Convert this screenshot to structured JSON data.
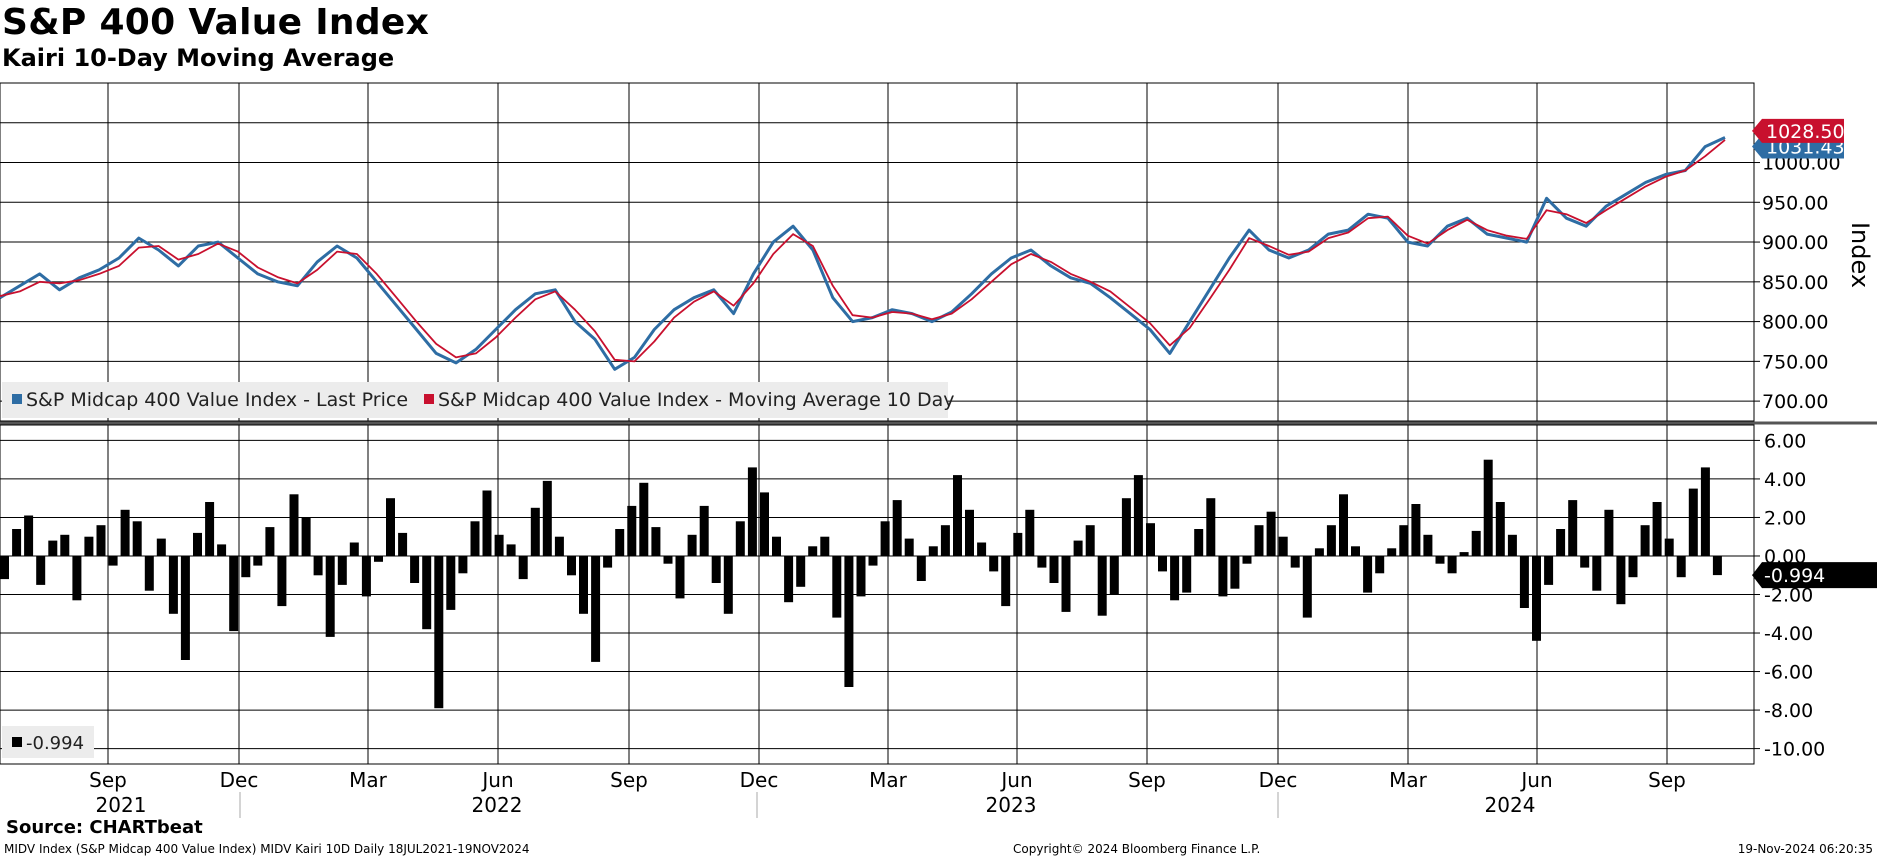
{
  "header": {
    "title": "S&P 400 Value Index",
    "subtitle": "Kairi 10-Day Moving Average"
  },
  "footer": {
    "source": "Source: CHARTbeat",
    "description": "MIDV Index (S&P Midcap 400 Value Index) MIDV Kairi 10D  Daily 18JUL2021-19NOV2024",
    "copyright": "Copyright© 2024 Bloomberg Finance L.P.",
    "timestamp": "19-Nov-2024 06:20:35"
  },
  "chart_data": [
    {
      "type": "line",
      "panel": "price",
      "ylabel": "Index",
      "ylim": [
        675,
        1100
      ],
      "yticks": [
        "700.00",
        "750.00",
        "800.00",
        "850.00",
        "900.00",
        "950.00",
        "1000.00"
      ],
      "grid": true,
      "legend_position": "bottom-left",
      "x": [
        "2021-07-19",
        "2021-08-02",
        "2021-08-16",
        "2021-08-30",
        "2021-09-13",
        "2021-09-27",
        "2021-10-11",
        "2021-10-25",
        "2021-11-08",
        "2021-11-22",
        "2021-12-06",
        "2021-12-20",
        "2022-01-03",
        "2022-01-17",
        "2022-01-31",
        "2022-02-14",
        "2022-02-28",
        "2022-03-14",
        "2022-03-28",
        "2022-04-11",
        "2022-04-25",
        "2022-05-09",
        "2022-05-23",
        "2022-06-06",
        "2022-06-20",
        "2022-07-04",
        "2022-07-18",
        "2022-08-01",
        "2022-08-15",
        "2022-08-29",
        "2022-09-12",
        "2022-09-26",
        "2022-10-10",
        "2022-10-24",
        "2022-11-07",
        "2022-11-21",
        "2022-12-05",
        "2022-12-19",
        "2023-01-02",
        "2023-01-16",
        "2023-01-30",
        "2023-02-13",
        "2023-02-27",
        "2023-03-13",
        "2023-03-27",
        "2023-04-10",
        "2023-04-24",
        "2023-05-08",
        "2023-05-22",
        "2023-06-05",
        "2023-06-19",
        "2023-07-03",
        "2023-07-17",
        "2023-07-31",
        "2023-08-14",
        "2023-08-28",
        "2023-09-11",
        "2023-09-25",
        "2023-10-09",
        "2023-10-23",
        "2023-11-06",
        "2023-11-20",
        "2023-12-04",
        "2023-12-18",
        "2024-01-01",
        "2024-01-15",
        "2024-01-29",
        "2024-02-12",
        "2024-02-26",
        "2024-03-11",
        "2024-03-25",
        "2024-04-08",
        "2024-04-22",
        "2024-05-06",
        "2024-05-20",
        "2024-06-03",
        "2024-06-17",
        "2024-07-01",
        "2024-07-15",
        "2024-07-29",
        "2024-08-12",
        "2024-08-26",
        "2024-09-09",
        "2024-09-23",
        "2024-10-07",
        "2024-10-21",
        "2024-11-04",
        "2024-11-18"
      ],
      "series": [
        {
          "name": "S&P Midcap 400 Value Index - Last Price",
          "color": "#2e6da4",
          "values": [
            830,
            845,
            860,
            840,
            855,
            865,
            880,
            905,
            890,
            870,
            895,
            900,
            880,
            860,
            850,
            845,
            875,
            895,
            880,
            850,
            820,
            790,
            760,
            748,
            765,
            790,
            815,
            835,
            840,
            800,
            778,
            740,
            755,
            790,
            815,
            830,
            840,
            810,
            860,
            900,
            920,
            890,
            830,
            800,
            805,
            815,
            810,
            800,
            812,
            835,
            860,
            880,
            890,
            870,
            855,
            848,
            830,
            810,
            790,
            760,
            800,
            840,
            880,
            915,
            890,
            880,
            890,
            910,
            915,
            935,
            930,
            900,
            895,
            920,
            930,
            910,
            905,
            900,
            955,
            930,
            920,
            945,
            960,
            975,
            985,
            990,
            1020,
            1031.43
          ]
        },
        {
          "name": "S&P Midcap 400 Value Index - Moving Average 10 Day",
          "color": "#c8102e",
          "values": [
            832,
            838,
            850,
            848,
            852,
            860,
            870,
            893,
            895,
            878,
            885,
            898,
            888,
            868,
            856,
            848,
            865,
            888,
            885,
            860,
            830,
            800,
            772,
            755,
            760,
            780,
            805,
            828,
            838,
            815,
            788,
            752,
            750,
            775,
            805,
            825,
            838,
            820,
            848,
            885,
            910,
            895,
            845,
            808,
            805,
            812,
            810,
            803,
            810,
            828,
            850,
            872,
            885,
            875,
            860,
            850,
            838,
            818,
            798,
            770,
            792,
            828,
            865,
            905,
            895,
            884,
            888,
            905,
            912,
            930,
            932,
            908,
            898,
            915,
            928,
            915,
            908,
            904,
            940,
            935,
            924,
            940,
            955,
            970,
            982,
            990,
            1008,
            1028.5
          ]
        }
      ],
      "price_tags": [
        {
          "label": "1031.43",
          "value": 1031.43,
          "color": "#2e6da4"
        },
        {
          "label": "1028.50",
          "value": 1028.5,
          "color": "#c8102e"
        }
      ]
    },
    {
      "type": "bar",
      "panel": "kairi",
      "series_name": "MIDV Kairi 10D",
      "ylim": [
        -10.8,
        6.8
      ],
      "yticks": [
        "6.00",
        "4.00",
        "2.00",
        "0.00",
        "-2.00",
        "-4.00",
        "-6.00",
        "-8.00",
        "-10.00"
      ],
      "grid": true,
      "color": "#000000",
      "last_value": -0.994,
      "last_label": "-0.994",
      "values": [
        -1.2,
        1.4,
        2.1,
        -1.5,
        0.8,
        1.1,
        -2.3,
        1.0,
        1.6,
        -0.5,
        2.4,
        1.8,
        -1.8,
        0.9,
        -3.0,
        -5.4,
        1.2,
        2.8,
        0.6,
        -3.9,
        -1.1,
        -0.5,
        1.5,
        -2.6,
        3.2,
        2.0,
        -1.0,
        -4.2,
        -1.5,
        0.7,
        -2.1,
        -0.3,
        3.0,
        1.2,
        -1.4,
        -3.8,
        -7.9,
        -2.8,
        -0.9,
        1.8,
        3.4,
        1.1,
        0.6,
        -1.2,
        2.5,
        3.9,
        1.0,
        -1.0,
        -3.0,
        -5.5,
        -0.6,
        1.4,
        2.6,
        3.8,
        1.5,
        -0.4,
        -2.2,
        1.1,
        2.6,
        -1.4,
        -3.0,
        1.8,
        4.6,
        3.3,
        1.0,
        -2.4,
        -1.6,
        0.5,
        1.0,
        -3.2,
        -6.8,
        -2.1,
        -0.5,
        1.8,
        2.9,
        0.9,
        -1.3,
        0.5,
        1.6,
        4.2,
        2.4,
        0.7,
        -0.8,
        -2.6,
        1.2,
        2.4,
        -0.6,
        -1.4,
        -2.9,
        0.8,
        1.6,
        -3.1,
        -2.0,
        3.0,
        4.2,
        1.7,
        -0.8,
        -2.3,
        -1.9,
        1.4,
        3.0,
        -2.1,
        -1.7,
        -0.4,
        1.6,
        2.3,
        1.0,
        -0.6,
        -3.2,
        0.4,
        1.6,
        3.2,
        0.5,
        -1.9,
        -0.9,
        0.4,
        1.6,
        2.7,
        1.1,
        -0.4,
        -0.9,
        0.2,
        1.3,
        5.0,
        2.8,
        1.1,
        -2.7,
        -4.4,
        -1.5,
        1.4,
        2.9,
        -0.6,
        -1.8,
        2.4,
        -2.5,
        -1.1,
        1.6,
        2.8,
        0.9,
        -1.1,
        3.5,
        4.6,
        -0.99
      ]
    }
  ],
  "x_axis": {
    "months": [
      "Sep",
      "Dec",
      "Mar",
      "Jun",
      "Sep",
      "Dec",
      "Mar",
      "Jun",
      "Sep",
      "Dec",
      "Mar",
      "Jun",
      "Sep"
    ],
    "years": [
      "2021",
      "2022",
      "2023",
      "2024"
    ]
  },
  "bottom_legend_label": "-0.994"
}
